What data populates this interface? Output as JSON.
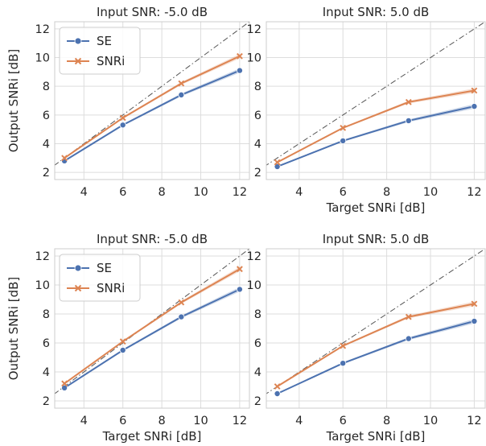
{
  "chart_data": [
    {
      "type": "line",
      "title": "Input SNR: -5.0 dB",
      "xlabel": "",
      "ylabel": "Output SNRi [dB]",
      "xlim": [
        2.5,
        12.5
      ],
      "ylim": [
        1.5,
        12.5
      ],
      "xticks": [
        4,
        6,
        8,
        10,
        12
      ],
      "yticks": [
        2,
        4,
        6,
        8,
        10,
        12
      ],
      "x": [
        3,
        6,
        9,
        12
      ],
      "grid": true,
      "legend": "top-left",
      "series": [
        {
          "name": "SE",
          "values": [
            2.8,
            5.3,
            7.4,
            9.1
          ],
          "color": "#4c72b0",
          "marker": "circle"
        },
        {
          "name": "SNRi",
          "values": [
            3.0,
            5.8,
            8.2,
            10.1
          ],
          "color": "#dd8452",
          "marker": "x"
        }
      ],
      "reference_line": "y=x"
    },
    {
      "type": "line",
      "title": "Input SNR: 5.0 dB",
      "xlabel": "Target SNRi [dB]",
      "ylabel": "",
      "xlim": [
        2.5,
        12.5
      ],
      "ylim": [
        1.5,
        12.5
      ],
      "xticks": [
        4,
        6,
        8,
        10,
        12
      ],
      "yticks": [
        2,
        4,
        6,
        8,
        10,
        12
      ],
      "x": [
        3,
        6,
        9,
        12
      ],
      "grid": true,
      "legend": "none",
      "series": [
        {
          "values": [
            2.4,
            4.2,
            5.6,
            6.6
          ],
          "color": "#4c72b0",
          "marker": "circle"
        },
        {
          "values": [
            2.7,
            5.1,
            6.9,
            7.7
          ],
          "color": "#dd8452",
          "marker": "x"
        }
      ],
      "reference_line": "y=x"
    },
    {
      "type": "line",
      "title": "Input SNR: -5.0 dB",
      "xlabel": "Target SNRi [dB]",
      "ylabel": "Output SNRi [dB]",
      "xlim": [
        2.5,
        12.5
      ],
      "ylim": [
        1.5,
        12.5
      ],
      "xticks": [
        4,
        6,
        8,
        10,
        12
      ],
      "yticks": [
        2,
        4,
        6,
        8,
        10,
        12
      ],
      "x": [
        3,
        6,
        9,
        12
      ],
      "grid": true,
      "legend": "top-left",
      "series": [
        {
          "name": "SE",
          "values": [
            2.9,
            5.5,
            7.8,
            9.7
          ],
          "color": "#4c72b0",
          "marker": "circle"
        },
        {
          "name": "SNRi",
          "values": [
            3.2,
            6.1,
            8.8,
            11.1
          ],
          "color": "#dd8452",
          "marker": "x"
        }
      ],
      "reference_line": "y=x"
    },
    {
      "type": "line",
      "title": "Input SNR: 5.0 dB",
      "xlabel": "Target SNRi [dB]",
      "ylabel": "",
      "xlim": [
        2.5,
        12.5
      ],
      "ylim": [
        1.5,
        12.5
      ],
      "xticks": [
        4,
        6,
        8,
        10,
        12
      ],
      "yticks": [
        2,
        4,
        6,
        8,
        10,
        12
      ],
      "x": [
        3,
        6,
        9,
        12
      ],
      "grid": true,
      "legend": "none",
      "series": [
        {
          "values": [
            2.5,
            4.6,
            6.3,
            7.5
          ],
          "color": "#4c72b0",
          "marker": "circle"
        },
        {
          "values": [
            3.0,
            5.8,
            7.8,
            8.7
          ],
          "color": "#dd8452",
          "marker": "x"
        }
      ],
      "reference_line": "y=x"
    }
  ]
}
